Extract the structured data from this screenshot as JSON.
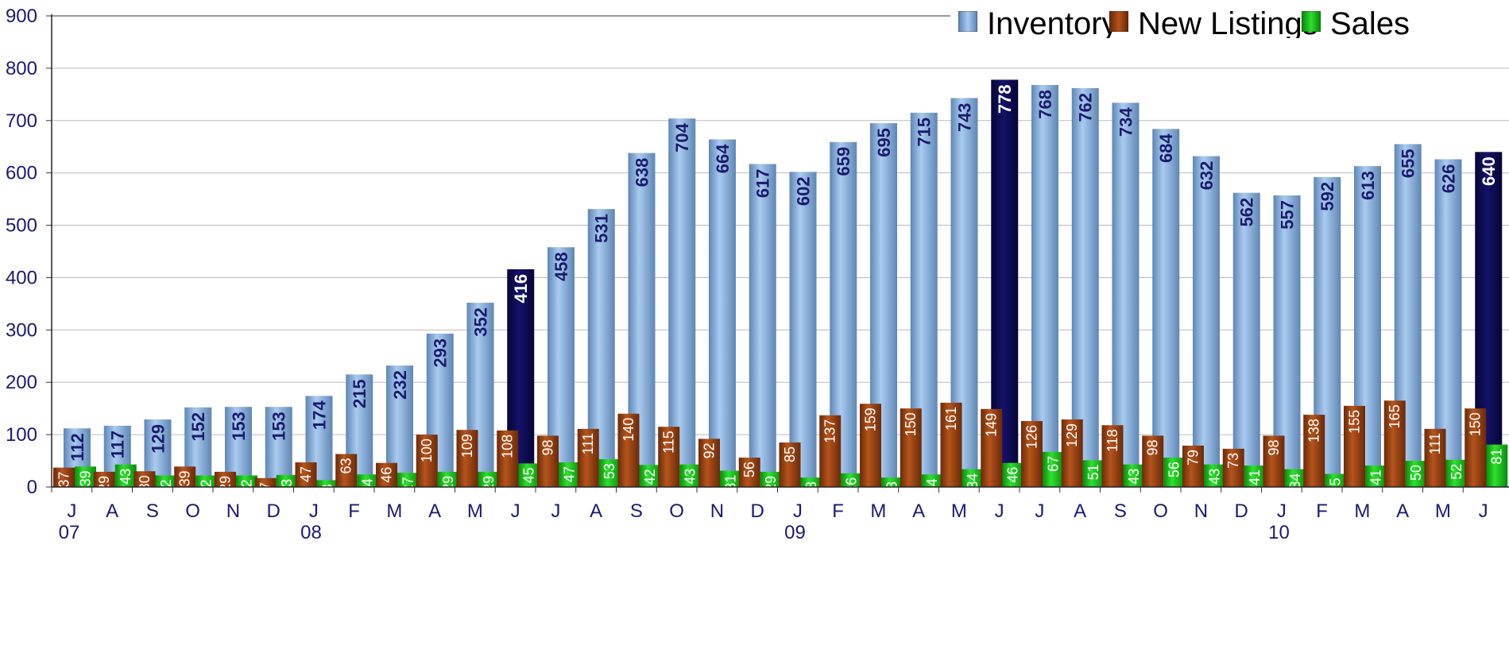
{
  "colors": {
    "inventory": "#8fb4de",
    "inventory_highlight": "#0b0a4a",
    "new_listings": "#8a3a10",
    "sales": "#14b814",
    "axis_text": "#1a1a6e",
    "gridline": "#bbbbbb"
  },
  "chart_data": {
    "type": "bar",
    "title": "",
    "xlabel": "",
    "ylabel": "",
    "ylim": [
      0,
      900
    ],
    "yticks": [
      0,
      100,
      200,
      300,
      400,
      500,
      600,
      700,
      800,
      900
    ],
    "grid": true,
    "legend_position": "top-right",
    "categories": [
      "J",
      "A",
      "S",
      "O",
      "N",
      "D",
      "J",
      "F",
      "M",
      "A",
      "M",
      "J",
      "J",
      "A",
      "S",
      "O",
      "N",
      "D",
      "J",
      "F",
      "M",
      "A",
      "M",
      "J",
      "J",
      "A",
      "S",
      "O",
      "N",
      "D",
      "J",
      "F",
      "M",
      "A",
      "M",
      "J"
    ],
    "year_labels": [
      {
        "label": "07",
        "category_index": 0
      },
      {
        "label": "08",
        "category_index": 6
      },
      {
        "label": "09",
        "category_index": 18
      },
      {
        "label": "10",
        "category_index": 30
      }
    ],
    "highlighted_indices": [
      11,
      23,
      35
    ],
    "series": [
      {
        "name": "Inventory",
        "values": [
          112,
          117,
          129,
          152,
          153,
          153,
          174,
          215,
          232,
          293,
          352,
          416,
          458,
          531,
          638,
          704,
          664,
          617,
          602,
          659,
          695,
          715,
          743,
          778,
          768,
          762,
          734,
          684,
          632,
          562,
          557,
          592,
          613,
          655,
          626,
          640
        ]
      },
      {
        "name": "New Listings",
        "values": [
          37,
          29,
          30,
          39,
          29,
          17,
          47,
          63,
          46,
          100,
          109,
          108,
          98,
          111,
          140,
          115,
          92,
          56,
          85,
          137,
          159,
          150,
          161,
          149,
          126,
          129,
          118,
          98,
          79,
          73,
          98,
          138,
          155,
          165,
          111,
          150
        ]
      },
      {
        "name": "Sales",
        "values": [
          39,
          43,
          22,
          22,
          22,
          23,
          13,
          24,
          27,
          29,
          29,
          45,
          47,
          53,
          42,
          43,
          31,
          29,
          18,
          26,
          18,
          24,
          34,
          46,
          67,
          51,
          43,
          56,
          43,
          41,
          34,
          25,
          41,
          50,
          52,
          81
        ]
      }
    ]
  }
}
